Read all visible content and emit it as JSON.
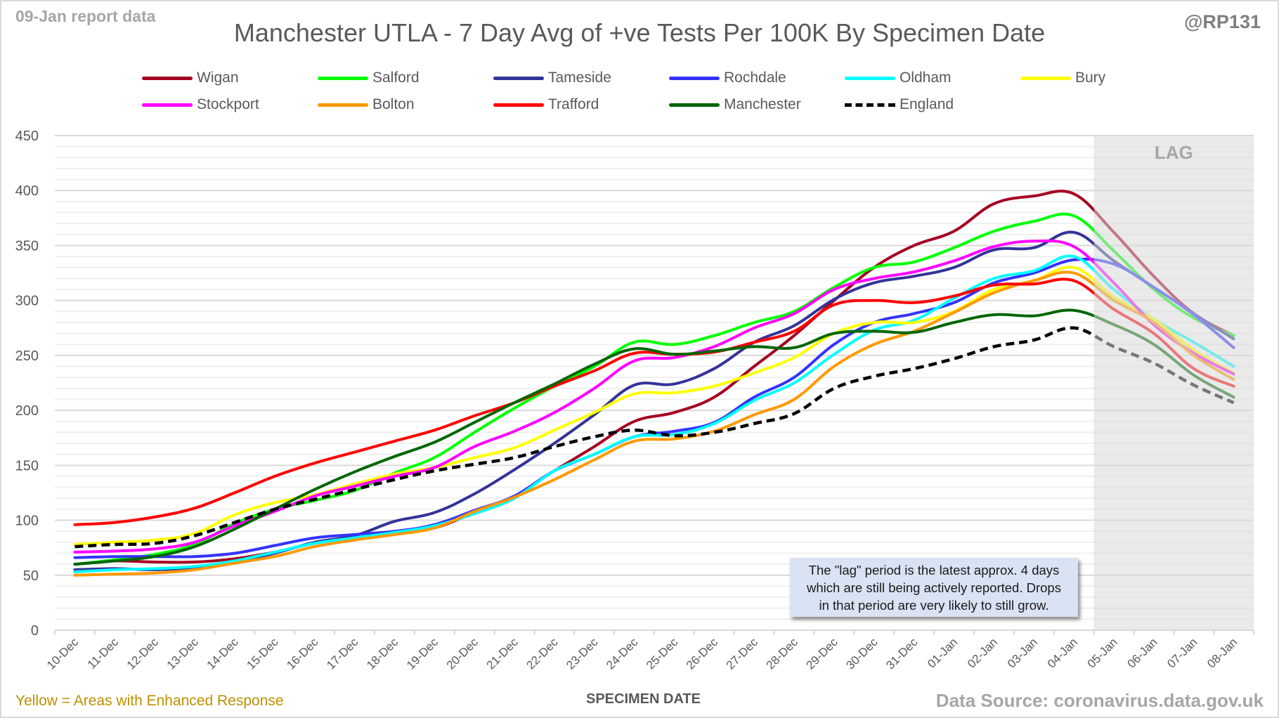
{
  "header": {
    "report_label": "09-Jan report data",
    "title": "Manchester UTLA - 7 Day Avg of +ve Tests Per 100K By Specimen Date",
    "handle": "@RP131"
  },
  "footer": {
    "note": "Yellow = Areas with Enhanced Response",
    "source": "Data Source: coronavirus.data.gov.uk"
  },
  "annotation": {
    "lines": [
      "The \"lag\" period is the latest approx. 4 days",
      "which are still being actively reported.  Drops",
      "in that period are very likely to still grow."
    ]
  },
  "chart_data": {
    "type": "line",
    "title": "Manchester UTLA - 7 Day Avg of +ve Tests Per 100K By Specimen Date",
    "xlabel": "SPECIMEN DATE",
    "ylabel": "",
    "ylim": [
      0,
      450
    ],
    "yticks": [
      0,
      50,
      100,
      150,
      200,
      250,
      300,
      350,
      400,
      450
    ],
    "grid": true,
    "legend_position": "top",
    "shaded_region": {
      "label": "LAG",
      "from": "05-Jan",
      "to": "08-Jan",
      "color": "#e3e3e3"
    },
    "categories": [
      "10-Dec",
      "11-Dec",
      "12-Dec",
      "13-Dec",
      "14-Dec",
      "15-Dec",
      "16-Dec",
      "17-Dec",
      "18-Dec",
      "19-Dec",
      "20-Dec",
      "21-Dec",
      "22-Dec",
      "23-Dec",
      "24-Dec",
      "25-Dec",
      "26-Dec",
      "27-Dec",
      "28-Dec",
      "29-Dec",
      "30-Dec",
      "31-Dec",
      "01-Jan",
      "02-Jan",
      "03-Jan",
      "04-Jan",
      "05-Jan",
      "06-Jan",
      "07-Jan",
      "08-Jan"
    ],
    "series": [
      {
        "name": "Wigan",
        "color": "#a50021",
        "dash": false,
        "values": [
          60,
          63,
          62,
          62,
          65,
          71,
          79,
          84,
          88,
          93,
          107,
          122,
          145,
          167,
          190,
          198,
          212,
          240,
          268,
          300,
          330,
          350,
          363,
          388,
          395,
          397,
          362,
          322,
          288,
          268
        ]
      },
      {
        "name": "Salford",
        "color": "#00ff00",
        "dash": false,
        "values": [
          60,
          64,
          69,
          78,
          97,
          110,
          118,
          127,
          143,
          157,
          180,
          202,
          222,
          240,
          262,
          260,
          268,
          280,
          290,
          312,
          330,
          335,
          348,
          363,
          372,
          377,
          345,
          310,
          284,
          268
        ]
      },
      {
        "name": "Tameside",
        "color": "#333399",
        "dash": false,
        "values": [
          55,
          56,
          55,
          57,
          62,
          70,
          80,
          86,
          99,
          107,
          124,
          146,
          170,
          196,
          223,
          224,
          238,
          262,
          277,
          301,
          316,
          322,
          330,
          346,
          348,
          362,
          336,
          312,
          288,
          265
        ]
      },
      {
        "name": "Rochdale",
        "color": "#3333ff",
        "dash": false,
        "values": [
          66,
          67,
          67,
          67,
          70,
          77,
          84,
          87,
          90,
          96,
          109,
          122,
          145,
          160,
          176,
          181,
          189,
          212,
          230,
          260,
          280,
          288,
          298,
          316,
          325,
          337,
          333,
          312,
          287,
          257
        ]
      },
      {
        "name": "Oldham",
        "color": "#00ffff",
        "dash": false,
        "values": [
          53,
          55,
          56,
          58,
          63,
          71,
          79,
          84,
          89,
          95,
          106,
          120,
          145,
          160,
          176,
          178,
          188,
          209,
          225,
          251,
          273,
          282,
          302,
          320,
          327,
          340,
          310,
          283,
          262,
          240
        ]
      },
      {
        "name": "Bury",
        "color": "#ffff00",
        "dash": false,
        "values": [
          78,
          80,
          82,
          88,
          105,
          116,
          123,
          133,
          142,
          148,
          157,
          166,
          182,
          198,
          215,
          216,
          222,
          234,
          248,
          270,
          280,
          280,
          290,
          310,
          318,
          330,
          303,
          283,
          255,
          234
        ]
      },
      {
        "name": "Stockport",
        "color": "#ff00ff",
        "dash": false,
        "values": [
          71,
          72,
          74,
          80,
          95,
          108,
          122,
          131,
          140,
          148,
          167,
          181,
          198,
          220,
          245,
          248,
          258,
          275,
          288,
          310,
          320,
          326,
          336,
          349,
          354,
          349,
          316,
          278,
          252,
          233
        ]
      },
      {
        "name": "Bolton",
        "color": "#ff9900",
        "dash": false,
        "values": [
          50,
          51,
          52,
          55,
          61,
          67,
          76,
          82,
          87,
          93,
          108,
          121,
          137,
          155,
          172,
          174,
          181,
          196,
          210,
          240,
          260,
          272,
          289,
          307,
          318,
          325,
          300,
          280,
          250,
          228
        ]
      },
      {
        "name": "Trafford",
        "color": "#ff0000",
        "dash": false,
        "values": [
          96,
          98,
          103,
          111,
          125,
          140,
          152,
          162,
          172,
          182,
          195,
          207,
          222,
          236,
          252,
          251,
          253,
          262,
          272,
          296,
          300,
          298,
          304,
          314,
          315,
          318,
          292,
          270,
          238,
          222
        ]
      },
      {
        "name": "Manchester",
        "color": "#006600",
        "dash": false,
        "values": [
          60,
          63,
          67,
          76,
          92,
          110,
          128,
          144,
          158,
          171,
          189,
          207,
          224,
          242,
          256,
          251,
          254,
          258,
          257,
          270,
          272,
          271,
          280,
          287,
          286,
          291,
          278,
          260,
          232,
          212
        ]
      },
      {
        "name": "England",
        "color": "#000000",
        "dash": true,
        "values": [
          76,
          78,
          79,
          86,
          98,
          110,
          119,
          128,
          137,
          145,
          151,
          157,
          167,
          176,
          182,
          177,
          180,
          188,
          197,
          220,
          231,
          238,
          247,
          258,
          264,
          275,
          258,
          243,
          223,
          207
        ]
      }
    ]
  }
}
